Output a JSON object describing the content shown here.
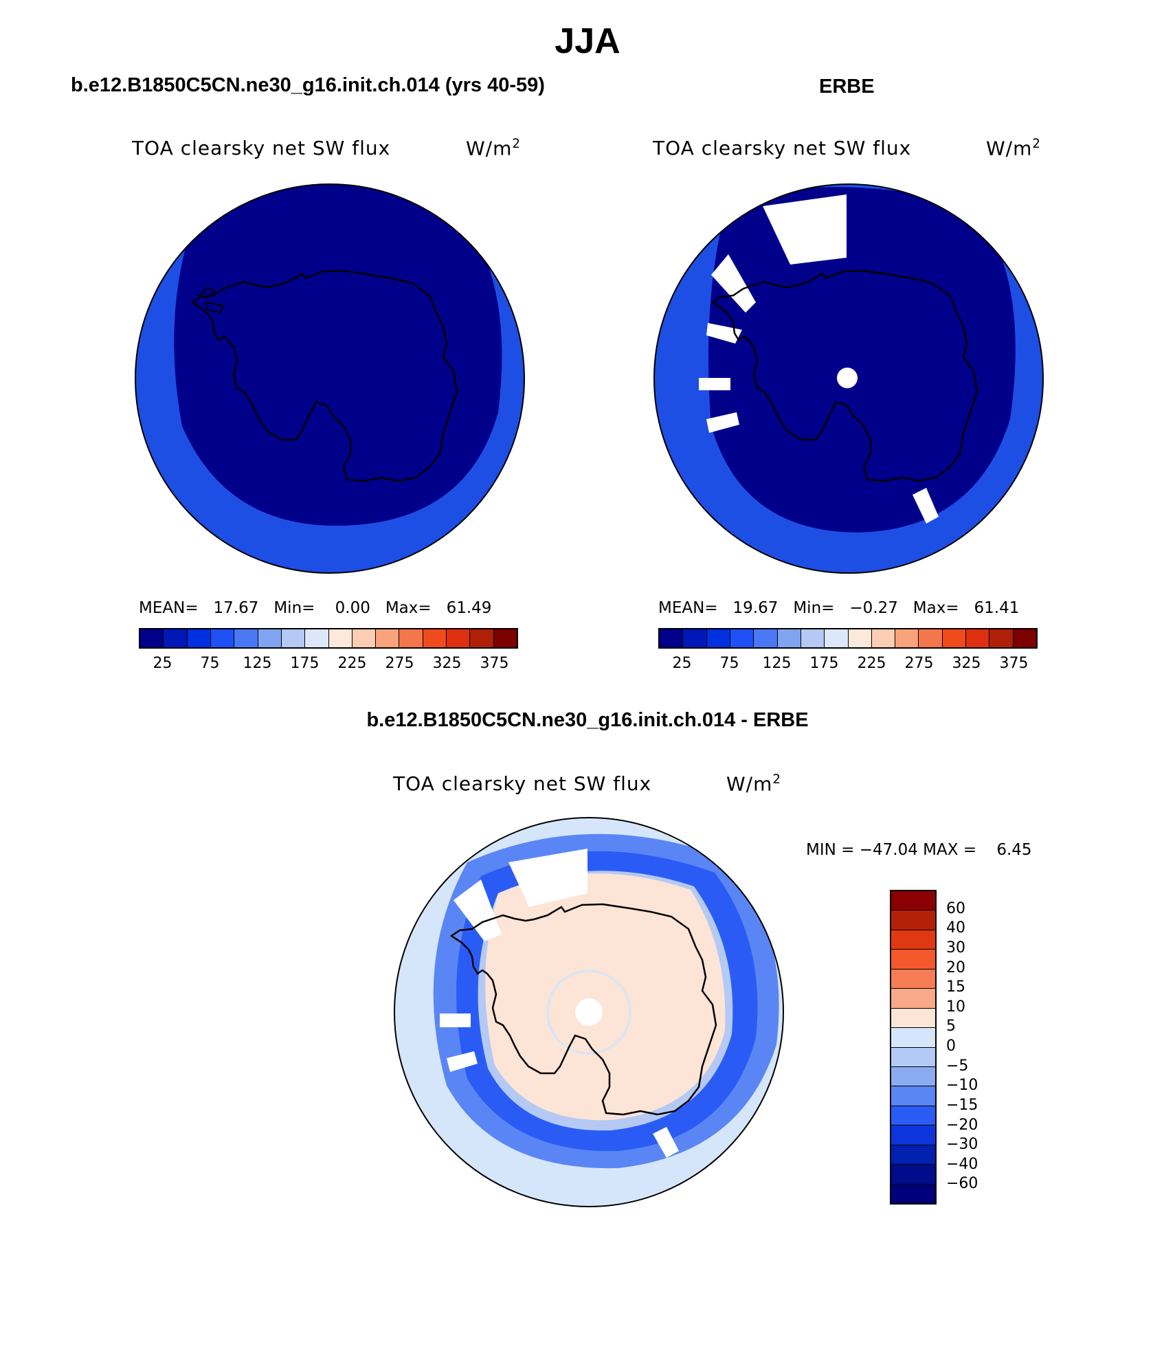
{
  "title": "JJA",
  "panels": {
    "model": {
      "header": "b.e12.B1850C5CN.ne30_g16.init.ch.014 (yrs 40-59)",
      "variable": "TOA clearsky net SW flux",
      "units": "W/m",
      "units_sup": "2",
      "stats": {
        "mean_label": "MEAN=",
        "mean": "17.67",
        "min_label": "Min=",
        "min": "0.00",
        "max_label": "Max=",
        "max": "61.49"
      }
    },
    "obs": {
      "header": "ERBE",
      "variable": "TOA clearsky net SW flux",
      "units": "W/m",
      "units_sup": "2",
      "stats": {
        "mean_label": "MEAN=",
        "mean": "19.67",
        "min_label": "Min=",
        "min": "−0.27",
        "max_label": "Max=",
        "max": "61.41"
      }
    },
    "diff": {
      "header": "b.e12.B1850C5CN.ne30_g16.init.ch.014 - ERBE",
      "variable": "TOA clearsky net SW flux",
      "units": "W/m",
      "units_sup": "2",
      "stats": {
        "min_label": "MIN =",
        "min": "−47.04",
        "max_label": "MAX =",
        "max": "6.45"
      }
    }
  },
  "colorbar_abs": {
    "colors": [
      "#00008b",
      "#0018b8",
      "#0030e0",
      "#1e50f5",
      "#4a78f5",
      "#80a4f0",
      "#b4c9f3",
      "#dce8fa",
      "#fde8dc",
      "#fbcdb4",
      "#f8a37c",
      "#f4764c",
      "#f04b1c",
      "#de3010",
      "#b01f08",
      "#7d0000"
    ],
    "tick_labels": [
      "25",
      "75",
      "125",
      "175",
      "225",
      "275",
      "325",
      "375"
    ]
  },
  "colorbar_diff": {
    "colors_top_to_bottom": [
      "#8b0000",
      "#b42008",
      "#e03810",
      "#f5582a",
      "#f57c55",
      "#f9a888",
      "#fce4d6",
      "#d6e6fa",
      "#b4c9f3",
      "#8cacf2",
      "#5a86f5",
      "#2a5cf5",
      "#0c36dc",
      "#0020b0",
      "#000c8c"
    ],
    "tick_labels": [
      "60",
      "40",
      "30",
      "20",
      "15",
      "10",
      "5",
      "0",
      "−5",
      "−10",
      "−15",
      "−20",
      "−30",
      "−40",
      "−60"
    ]
  }
}
